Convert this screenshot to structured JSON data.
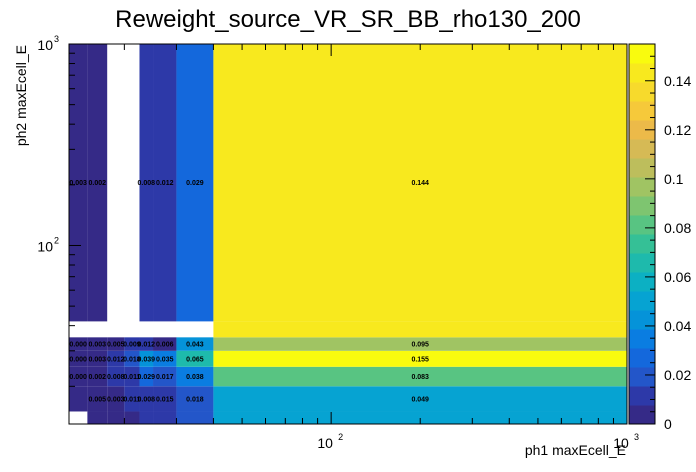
{
  "chart_data": {
    "type": "heatmap",
    "title": "Reweight_source_VR_SR_BB_rho130_200",
    "xlabel": "ph1 maxEcell_E",
    "ylabel": "ph2 maxEcell_E",
    "xscale": "log",
    "yscale": "log",
    "xlim": [
      13,
      1000
    ],
    "ylim": [
      13,
      1000
    ],
    "x_tick_labels": [
      {
        "value": 100,
        "base": "10",
        "exp": "2"
      },
      {
        "value": 1000,
        "base": "10",
        "exp": "3"
      }
    ],
    "y_tick_labels": [
      {
        "value": 100,
        "base": "10",
        "exp": "2"
      },
      {
        "value": 1000,
        "base": "10",
        "exp": "3"
      }
    ],
    "x_edges": [
      13,
      15,
      17.5,
      20,
      22.5,
      25,
      30,
      40,
      1000
    ],
    "y_edges": [
      13,
      15,
      20,
      25,
      30,
      35,
      42,
      1000
    ],
    "cells": [
      {
        "xi": 0,
        "yi": 1,
        "v": 0.0,
        "label": ""
      },
      {
        "xi": 0,
        "yi": 2,
        "v": 0.0,
        "label": "0.000"
      },
      {
        "xi": 0,
        "yi": 3,
        "v": 0.0,
        "label": "0.000"
      },
      {
        "xi": 0,
        "yi": 4,
        "v": 0.0,
        "label": "0.000"
      },
      {
        "xi": 0,
        "yi": 6,
        "v": 0.003,
        "label": "0.003"
      },
      {
        "xi": 1,
        "yi": 0,
        "v": 0.0,
        "label": ""
      },
      {
        "xi": 1,
        "yi": 1,
        "v": 0.005,
        "label": "0.005"
      },
      {
        "xi": 1,
        "yi": 2,
        "v": 0.002,
        "label": "0.002"
      },
      {
        "xi": 1,
        "yi": 3,
        "v": 0.003,
        "label": "0.003"
      },
      {
        "xi": 1,
        "yi": 4,
        "v": 0.003,
        "label": "0.003"
      },
      {
        "xi": 1,
        "yi": 6,
        "v": 0.002,
        "label": "0.002"
      },
      {
        "xi": 2,
        "yi": 0,
        "v": 0.0,
        "label": ""
      },
      {
        "xi": 2,
        "yi": 1,
        "v": 0.003,
        "label": "0.003"
      },
      {
        "xi": 2,
        "yi": 2,
        "v": 0.008,
        "label": "0.008"
      },
      {
        "xi": 2,
        "yi": 3,
        "v": 0.012,
        "label": "0.012"
      },
      {
        "xi": 2,
        "yi": 4,
        "v": 0.005,
        "label": "0.005"
      },
      {
        "xi": 3,
        "yi": 0,
        "v": 0.001,
        "label": ""
      },
      {
        "xi": 3,
        "yi": 1,
        "v": 0.011,
        "label": "0.011"
      },
      {
        "xi": 3,
        "yi": 2,
        "v": 0.011,
        "label": "0.011"
      },
      {
        "xi": 3,
        "yi": 3,
        "v": 0.018,
        "label": "0.018"
      },
      {
        "xi": 3,
        "yi": 4,
        "v": 0.009,
        "label": "0.009"
      },
      {
        "xi": 4,
        "yi": 0,
        "v": 0.01,
        "label": ""
      },
      {
        "xi": 4,
        "yi": 1,
        "v": 0.008,
        "label": "0.008"
      },
      {
        "xi": 4,
        "yi": 2,
        "v": 0.029,
        "label": "0.029"
      },
      {
        "xi": 4,
        "yi": 3,
        "v": 0.039,
        "label": "0.039"
      },
      {
        "xi": 4,
        "yi": 4,
        "v": 0.012,
        "label": "0.012"
      },
      {
        "xi": 4,
        "yi": 6,
        "v": 0.008,
        "label": "0.008"
      },
      {
        "xi": 5,
        "yi": 0,
        "v": 0.015,
        "label": ""
      },
      {
        "xi": 5,
        "yi": 1,
        "v": 0.015,
        "label": "0.015"
      },
      {
        "xi": 5,
        "yi": 2,
        "v": 0.017,
        "label": "0.017"
      },
      {
        "xi": 5,
        "yi": 3,
        "v": 0.035,
        "label": "0.035"
      },
      {
        "xi": 5,
        "yi": 4,
        "v": 0.006,
        "label": "0.006"
      },
      {
        "xi": 5,
        "yi": 6,
        "v": 0.012,
        "label": "0.012"
      },
      {
        "xi": 6,
        "yi": 0,
        "v": 0.018,
        "label": ""
      },
      {
        "xi": 6,
        "yi": 1,
        "v": 0.018,
        "label": "0.018"
      },
      {
        "xi": 6,
        "yi": 2,
        "v": 0.038,
        "label": "0.038"
      },
      {
        "xi": 6,
        "yi": 3,
        "v": 0.065,
        "label": "0.065"
      },
      {
        "xi": 6,
        "yi": 4,
        "v": 0.043,
        "label": "0.043"
      },
      {
        "xi": 6,
        "yi": 6,
        "v": 0.029,
        "label": "0.029"
      },
      {
        "xi": 7,
        "yi": 0,
        "v": 0.049,
        "label": ""
      },
      {
        "xi": 7,
        "yi": 1,
        "v": 0.049,
        "label": "0.049"
      },
      {
        "xi": 7,
        "yi": 2,
        "v": 0.083,
        "label": "0.083"
      },
      {
        "xi": 7,
        "yi": 3,
        "v": 0.155,
        "label": "0.155"
      },
      {
        "xi": 7,
        "yi": 4,
        "v": 0.095,
        "label": "0.095"
      },
      {
        "xi": 7,
        "yi": 5,
        "v": 0.144,
        "label": ""
      },
      {
        "xi": 7,
        "yi": 6,
        "v": 0.144,
        "label": "0.144"
      }
    ],
    "colorbar": {
      "min": 0,
      "max": 0.155,
      "ticks": [
        0,
        0.02,
        0.04,
        0.06,
        0.08,
        0.1,
        0.12,
        0.14
      ],
      "tick_labels": [
        "0",
        "0.02",
        "0.04",
        "0.06",
        "0.08",
        "0.1",
        "0.12",
        "0.14"
      ]
    },
    "palette": [
      "#352a87",
      "#2d39a8",
      "#2356c9",
      "#1468dc",
      "#0a7de1",
      "#0593d9",
      "#06a3d2",
      "#0cb0c3",
      "#1ebaac",
      "#35c096",
      "#58c482",
      "#7ec570",
      "#a0c463",
      "#bdbe5c",
      "#d6ba55",
      "#ecba49",
      "#f6c93a",
      "#f7da2c",
      "#f8e91e",
      "#f9fb0e"
    ]
  }
}
